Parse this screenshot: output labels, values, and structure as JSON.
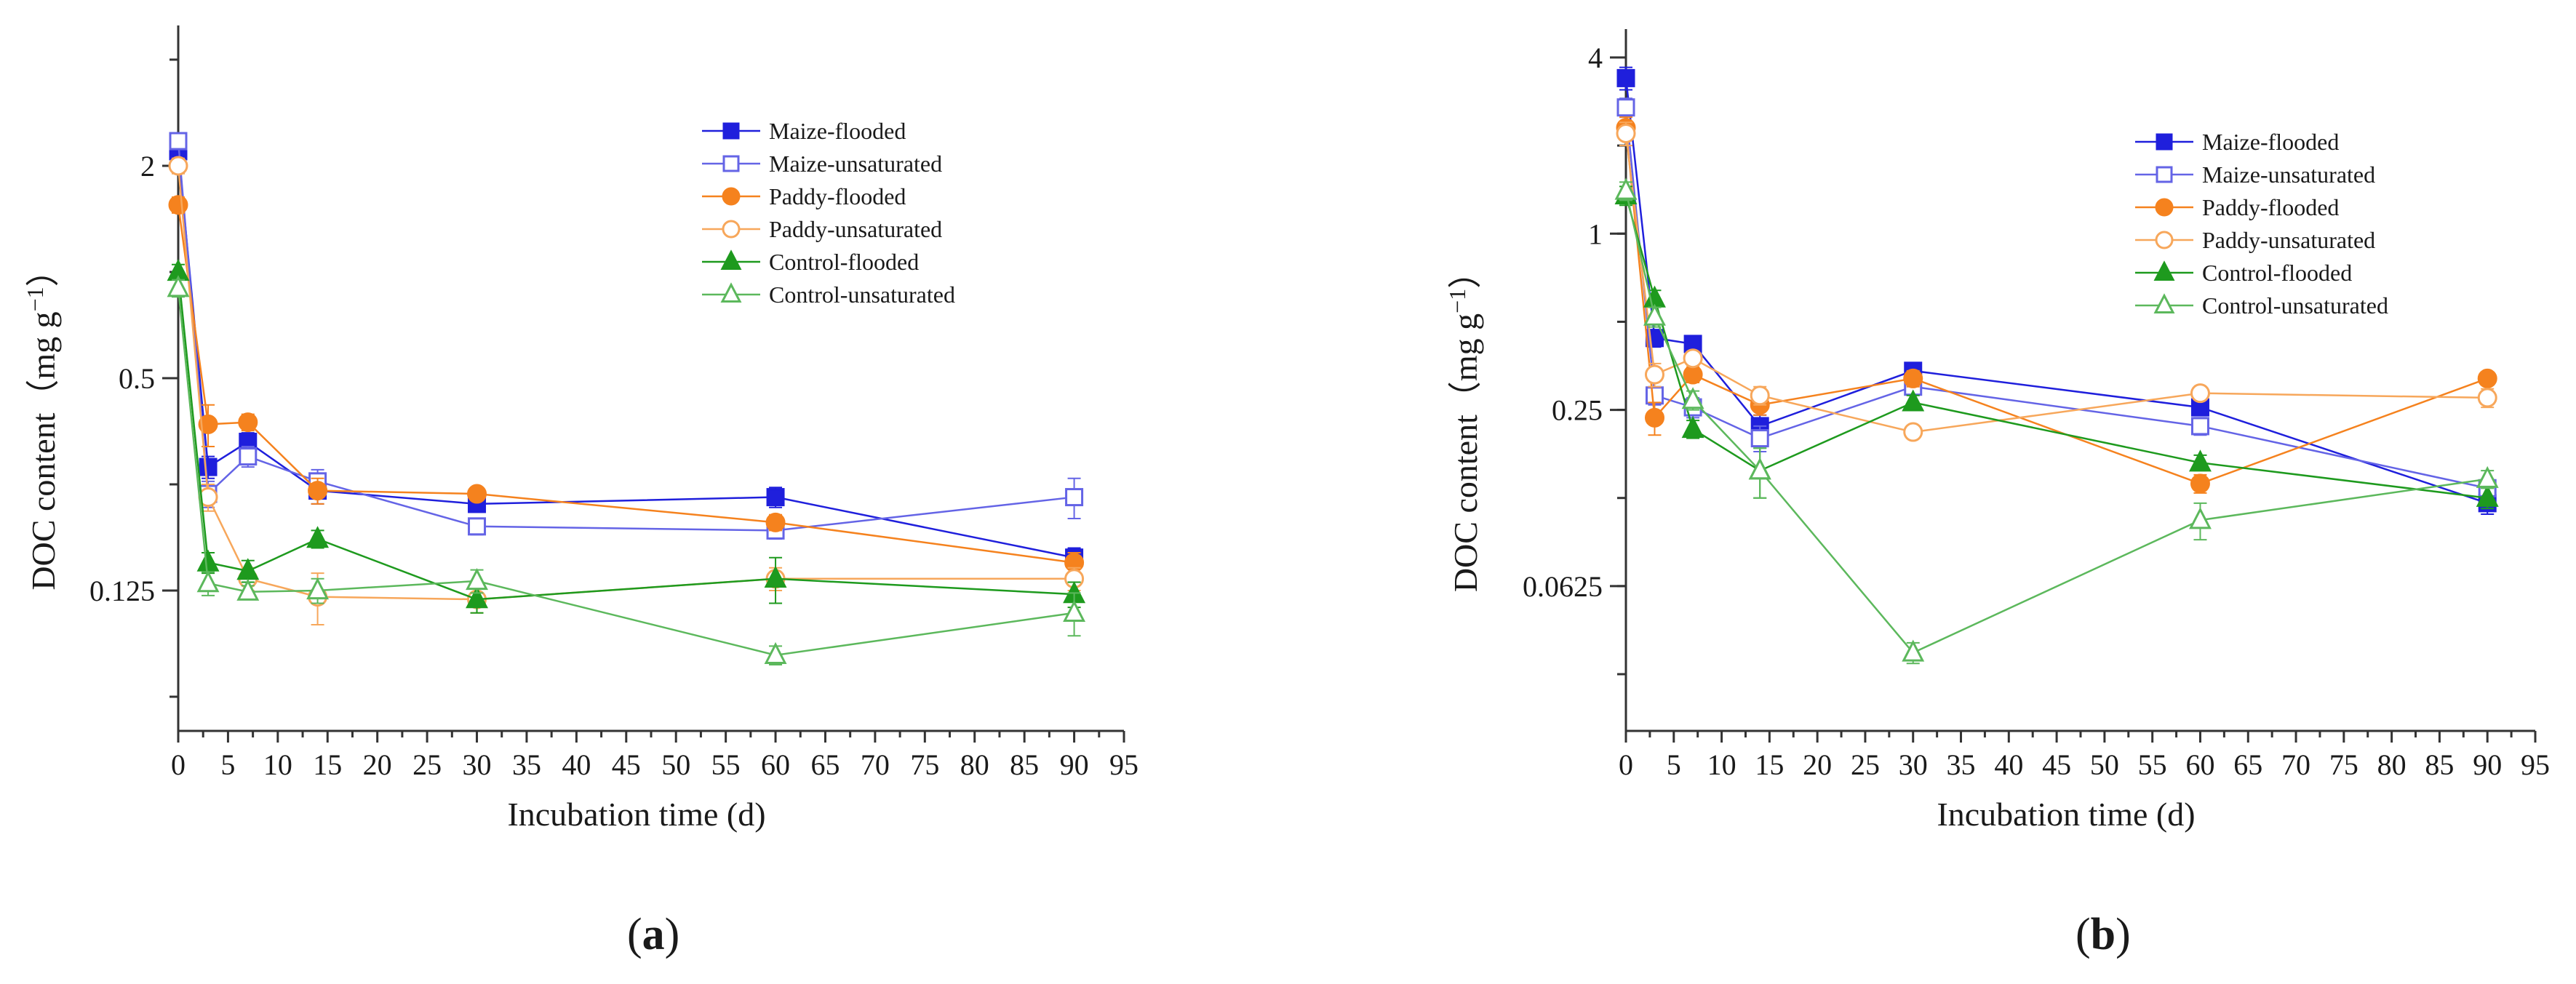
{
  "figure": {
    "panels": [
      "(a)",
      "(b)"
    ]
  },
  "chart_data": [
    {
      "type": "line",
      "panel_label_text": "a",
      "xlabel": "Incubation time (d)",
      "ylabel": "DOC content（mg g",
      "ylabel_sup": "−1",
      "ylabel_close": "）",
      "yscale": "log2",
      "xlim": [
        0,
        95
      ],
      "ylim": [
        0.05,
        5.0
      ],
      "xticks": [
        0,
        5,
        10,
        15,
        20,
        25,
        30,
        35,
        40,
        45,
        50,
        55,
        60,
        65,
        70,
        75,
        80,
        85,
        90,
        95
      ],
      "yticks": [
        0.125,
        0.5,
        2
      ],
      "ytick_labels": [
        "0.125",
        "0.5",
        "2"
      ],
      "x": [
        0,
        3,
        7,
        14,
        30,
        60,
        90
      ],
      "legend_position": "top-right",
      "series": [
        {
          "name": "Maize-flooded",
          "color": "#1f1fdc",
          "marker": "square",
          "filled": true,
          "values": [
            2.2,
            0.28,
            0.33,
            0.24,
            0.22,
            0.23,
            0.155
          ],
          "errors": [
            0.1,
            0.02,
            0.02,
            0.02,
            0.01,
            0.015,
            0.01
          ]
        },
        {
          "name": "Maize-unsaturated",
          "color": "#6464e6",
          "marker": "square",
          "filled": false,
          "values": [
            2.35,
            0.235,
            0.3,
            0.255,
            0.19,
            0.185,
            0.23
          ],
          "errors": [
            0.1,
            0.02,
            0.02,
            0.02,
            0.01,
            0.01,
            0.03
          ]
        },
        {
          "name": "Paddy-flooded",
          "color": "#f5821e",
          "marker": "circle",
          "filled": true,
          "values": [
            1.55,
            0.37,
            0.375,
            0.24,
            0.235,
            0.195,
            0.15
          ],
          "errors": [
            0.08,
            0.05,
            0.02,
            0.02,
            0.01,
            0.01,
            0.01
          ]
        },
        {
          "name": "Paddy-unsaturated",
          "color": "#f7a75b",
          "marker": "circle",
          "filled": false,
          "values": [
            2.0,
            0.23,
            0.135,
            0.12,
            0.118,
            0.135,
            0.135
          ],
          "errors": [
            0.1,
            0.02,
            0.01,
            0.02,
            0.01,
            0.01,
            0.01
          ]
        },
        {
          "name": "Control-flooded",
          "color": "#1e9a1e",
          "marker": "triangle",
          "filled": true,
          "values": [
            1.0,
            0.15,
            0.142,
            0.175,
            0.118,
            0.135,
            0.122
          ],
          "errors": [
            0.05,
            0.01,
            0.01,
            0.01,
            0.01,
            0.02,
            0.01
          ]
        },
        {
          "name": "Control-unsaturated",
          "color": "#5cb85c",
          "marker": "triangle",
          "filled": false,
          "values": [
            0.9,
            0.131,
            0.124,
            0.125,
            0.133,
            0.082,
            0.108
          ],
          "errors": [
            0.05,
            0.01,
            0.005,
            0.01,
            0.01,
            0.005,
            0.015
          ]
        }
      ]
    },
    {
      "type": "line",
      "panel_label_text": "b",
      "xlabel": "Incubation time (d)",
      "ylabel": "DOC content（mg g",
      "ylabel_sup": "−1",
      "ylabel_close": "）",
      "yscale": "log2",
      "xlim": [
        0,
        95
      ],
      "ylim": [
        0.02,
        5.0
      ],
      "xticks": [
        0,
        5,
        10,
        15,
        20,
        25,
        30,
        35,
        40,
        45,
        50,
        55,
        60,
        65,
        70,
        75,
        80,
        85,
        90,
        95
      ],
      "yticks": [
        0.0625,
        0.25,
        1,
        4
      ],
      "ytick_labels": [
        "0.0625",
        "0.25",
        "1",
        "4"
      ],
      "x": [
        0,
        3,
        7,
        14,
        30,
        60,
        90
      ],
      "legend_position": "top-right",
      "series": [
        {
          "name": "Maize-flooded",
          "color": "#1f1fdc",
          "marker": "square",
          "filled": true,
          "values": [
            3.4,
            0.44,
            0.42,
            0.22,
            0.34,
            0.255,
            0.12
          ],
          "errors": [
            0.3,
            0.03,
            0.02,
            0.02,
            0.02,
            0.015,
            0.01
          ]
        },
        {
          "name": "Maize-unsaturated",
          "color": "#6464e6",
          "marker": "square",
          "filled": false,
          "values": [
            2.7,
            0.28,
            0.255,
            0.2,
            0.3,
            0.22,
            0.135
          ],
          "errors": [
            0.2,
            0.02,
            0.02,
            0.02,
            0.015,
            0.015,
            0.01
          ]
        },
        {
          "name": "Paddy-flooded",
          "color": "#f5821e",
          "marker": "circle",
          "filled": true,
          "values": [
            2.3,
            0.235,
            0.33,
            0.26,
            0.32,
            0.14,
            0.32
          ],
          "errors": [
            0.2,
            0.03,
            0.02,
            0.02,
            0.02,
            0.01,
            0.015
          ]
        },
        {
          "name": "Paddy-unsaturated",
          "color": "#f7a75b",
          "marker": "circle",
          "filled": false,
          "values": [
            2.2,
            0.33,
            0.375,
            0.28,
            0.21,
            0.285,
            0.275
          ],
          "errors": [
            0.2,
            0.03,
            0.02,
            0.02,
            0.01,
            0.015,
            0.02
          ]
        },
        {
          "name": "Control-flooded",
          "color": "#1e9a1e",
          "marker": "triangle",
          "filled": true,
          "values": [
            1.35,
            0.6,
            0.215,
            0.155,
            0.265,
            0.165,
            0.125
          ],
          "errors": [
            0.1,
            0.04,
            0.015,
            0.03,
            0.015,
            0.01,
            0.01
          ]
        },
        {
          "name": "Control-unsaturated",
          "color": "#5cb85c",
          "marker": "triangle",
          "filled": false,
          "values": [
            1.4,
            0.52,
            0.27,
            0.155,
            0.037,
            0.105,
            0.145
          ],
          "errors": [
            0.1,
            0.04,
            0.02,
            0.03,
            0.003,
            0.015,
            0.01
          ]
        }
      ]
    }
  ]
}
